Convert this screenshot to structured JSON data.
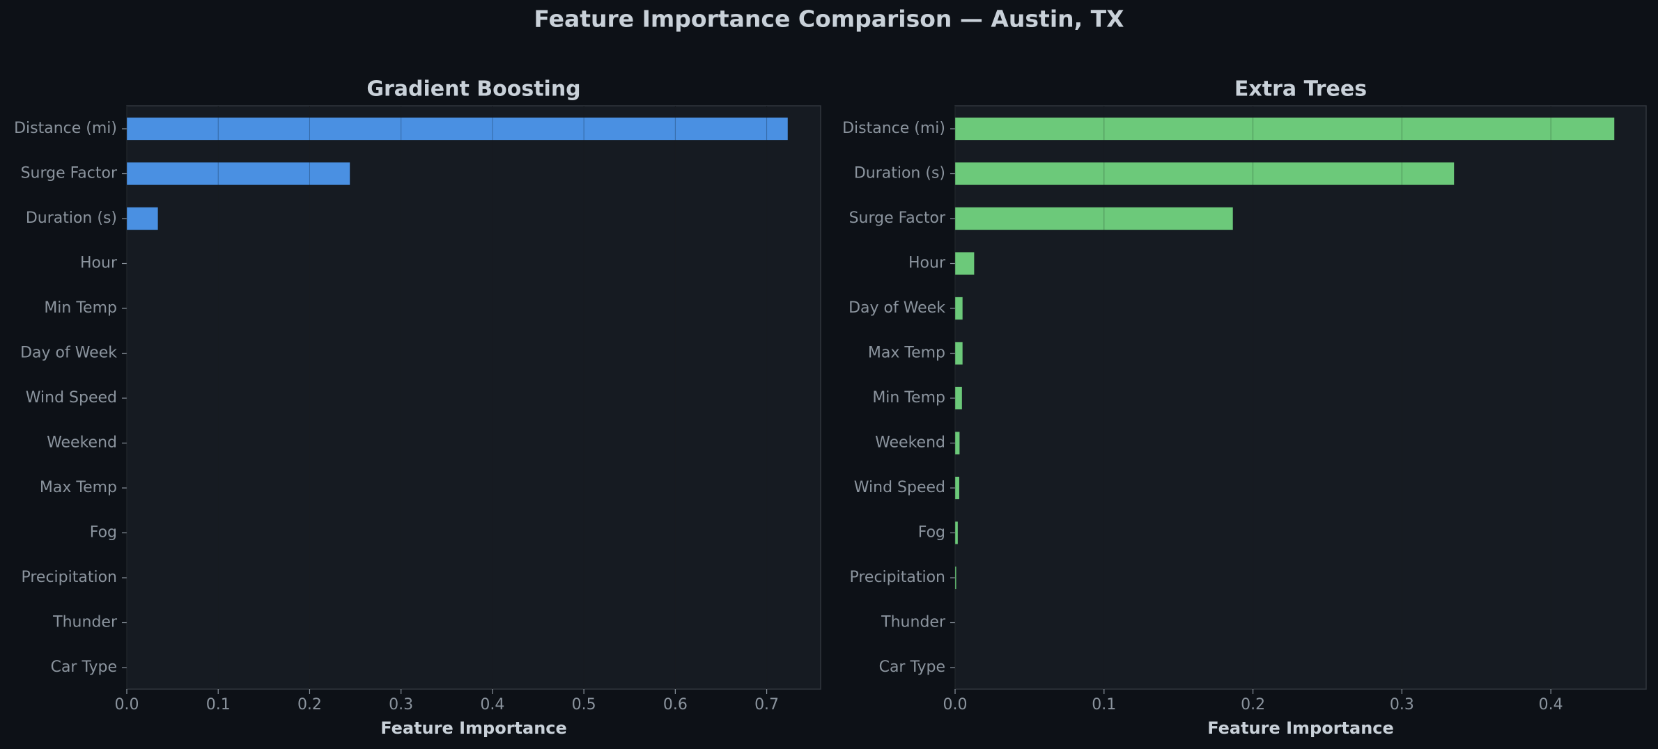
{
  "title": "Feature Importance Comparison — Austin, TX",
  "chart_data": [
    {
      "type": "barh",
      "title": "Gradient Boosting",
      "xlabel": "Feature Importance",
      "color": "#4a90e2",
      "grid": true,
      "categories": [
        "Distance (mi)",
        "Surge Factor",
        "Duration (s)",
        "Hour",
        "Min Temp",
        "Day of Week",
        "Wind Speed",
        "Weekend",
        "Max Temp",
        "Fog",
        "Precipitation",
        "Thunder",
        "Car Type"
      ],
      "values": [
        0.723,
        0.244,
        0.034,
        0,
        0,
        0,
        0,
        0,
        0,
        0,
        0,
        0,
        0
      ],
      "xlim": [
        0,
        0.759
      ],
      "xticks": [
        {
          "value": 0,
          "label": "0.0"
        },
        0.1,
        0.2,
        0.3,
        0.4,
        0.5,
        0.6,
        0.7
      ]
    },
    {
      "type": "barh",
      "title": "Extra Trees",
      "xlabel": "Feature Importance",
      "color": "#6cc97a",
      "grid": true,
      "categories": [
        "Distance (mi)",
        "Duration (s)",
        "Surge Factor",
        "Hour",
        "Day of Week",
        "Max Temp",
        "Min Temp",
        "Weekend",
        "Wind Speed",
        "Fog",
        "Precipitation",
        "Thunder",
        "Car Type"
      ],
      "values": [
        0.4426,
        0.335,
        0.1865,
        0.0128,
        0.005,
        0.005,
        0.0046,
        0.003,
        0.0028,
        0.0018,
        0.0007,
        0,
        0
      ],
      "xlim": [
        0,
        0.464
      ],
      "xticks": [
        {
          "value": 0,
          "label": "0.0"
        },
        0.1,
        0.2,
        0.3,
        0.4
      ]
    }
  ]
}
